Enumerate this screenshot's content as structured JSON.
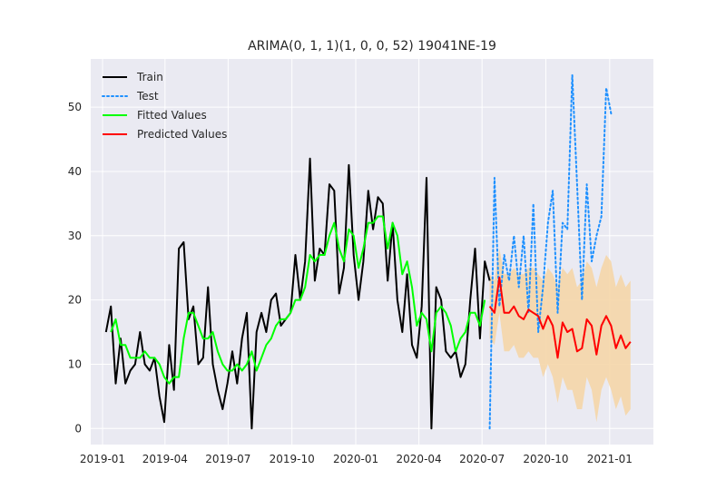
{
  "chart_data": {
    "type": "line",
    "title": "ARIMA(0, 1, 1)(1, 0, 0, 52) 19041NE-19",
    "xlabel": "",
    "ylabel": "",
    "x_ticks": [
      "2019-01",
      "2019-04",
      "2019-07",
      "2019-10",
      "2020-01",
      "2020-04",
      "2020-07",
      "2020-10",
      "2021-01"
    ],
    "y_ticks": [
      0,
      10,
      20,
      30,
      40,
      50
    ],
    "xlim": [
      "2018-12-15",
      "2021-03-05"
    ],
    "ylim": [
      -2.5,
      57.5
    ],
    "grid": true,
    "legend_position": "upper-left",
    "colors": {
      "background": "#EAEAF2",
      "grid": "#FFFFFF",
      "train": "#000000",
      "test": "#1E90FF",
      "fitted": "#00FF00",
      "predicted": "#FF0000",
      "confidence_band": "#F5D6A8"
    },
    "series": [
      {
        "name": "Train",
        "style": "solid",
        "start_date": "2019-01-06",
        "step_days": 7,
        "values": [
          15,
          19,
          7,
          14,
          7,
          9,
          10,
          15,
          10,
          9,
          11,
          5,
          1,
          13,
          6,
          28,
          29,
          17,
          19,
          10,
          11,
          22,
          10,
          6,
          3,
          7,
          12,
          7,
          14,
          18,
          0,
          15,
          18,
          15,
          20,
          21,
          16,
          17,
          18,
          27,
          20,
          26,
          42,
          23,
          28,
          27,
          38,
          37,
          21,
          25,
          41,
          27,
          20,
          26,
          37,
          31,
          36,
          35,
          23,
          32,
          20,
          15,
          24,
          13,
          11,
          19,
          39,
          0,
          22,
          20,
          12,
          11,
          12,
          8,
          10,
          20,
          28,
          14,
          26,
          23
        ]
      },
      {
        "name": "Fitted Values",
        "style": "solid",
        "start_date": "2019-01-13",
        "step_days": 7,
        "values": [
          15,
          17,
          13,
          13,
          11,
          11,
          11,
          12,
          11,
          11,
          10,
          8,
          7,
          8,
          8,
          14,
          18,
          18,
          16,
          14,
          14,
          15,
          12,
          10,
          9,
          9,
          10,
          9,
          10,
          12,
          9,
          11,
          13,
          14,
          16,
          17,
          17,
          18,
          20,
          20,
          22,
          27,
          26,
          27,
          27,
          30,
          32,
          28,
          26,
          31,
          30,
          25,
          28,
          32,
          32,
          33,
          33,
          28,
          32,
          30,
          24,
          26,
          22,
          16,
          18,
          17,
          12,
          18,
          19,
          18,
          16,
          12,
          14,
          15,
          18,
          18,
          16,
          20
        ]
      },
      {
        "name": "Test",
        "style": "dotted",
        "start_date": "2020-07-12",
        "step_days": 7,
        "values": [
          0,
          39,
          19,
          27,
          23,
          30,
          22,
          30,
          18,
          35,
          15,
          22,
          32,
          37,
          18,
          32,
          31,
          55,
          38,
          20,
          38,
          26,
          30,
          33,
          53,
          49
        ]
      },
      {
        "name": "Predicted Values",
        "style": "solid",
        "start_date": "2020-07-12",
        "step_days": 7,
        "values": [
          19,
          18,
          23.5,
          18,
          18,
          19,
          17.5,
          17,
          18.5,
          18,
          17.5,
          15.5,
          17.5,
          16,
          11,
          16.5,
          15,
          15.5,
          12,
          12.5,
          17,
          16,
          11.5,
          16,
          17.5,
          16,
          12.5,
          14.5,
          12.5,
          13.5
        ]
      }
    ],
    "confidence_band": {
      "start_date": "2020-07-12",
      "step_days": 7,
      "upper": [
        24,
        23,
        28,
        24,
        24,
        25,
        24,
        24,
        25,
        25,
        24,
        23,
        25,
        24,
        22,
        25,
        24,
        25,
        22,
        23,
        26,
        25,
        22,
        25,
        27,
        26,
        22,
        24,
        22,
        23
      ],
      "lower": [
        14,
        13,
        18,
        12,
        12,
        13,
        11,
        11,
        12,
        11,
        11,
        8,
        10,
        8,
        4,
        8,
        6,
        6,
        3,
        3,
        8,
        6,
        1,
        6,
        8,
        6,
        3,
        5,
        2,
        3
      ]
    }
  }
}
